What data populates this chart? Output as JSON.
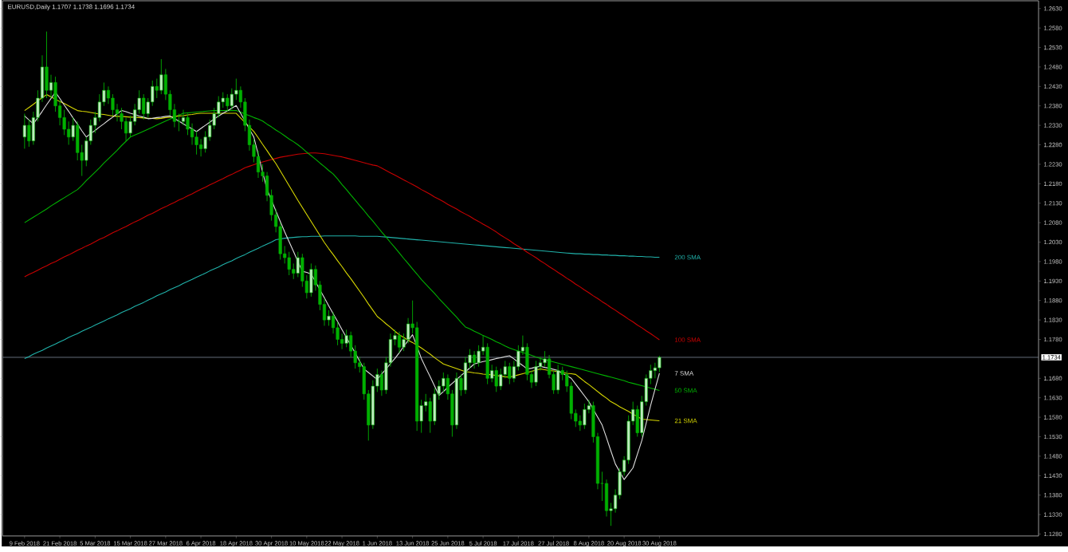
{
  "chart_data": {
    "type": "candlestick",
    "title": "EURUSD,Daily  1.1707 1.1738 1.1696 1.1734",
    "color": "#00b000",
    "categories": [
      "9 Feb 2018",
      null,
      null,
      null,
      null,
      null,
      null,
      null,
      "21 Feb 2018",
      null,
      null,
      null,
      null,
      null,
      null,
      null,
      "5 Mar 2018",
      null,
      null,
      null,
      null,
      null,
      null,
      null,
      "15 Mar 2018",
      null,
      null,
      null,
      null,
      null,
      null,
      null,
      "27 Mar 2018",
      null,
      null,
      null,
      null,
      null,
      null,
      null,
      "6 Apr 2018",
      null,
      null,
      null,
      null,
      null,
      null,
      null,
      "18 Apr 2018",
      null,
      null,
      null,
      null,
      null,
      null,
      null,
      "30 Apr 2018",
      null,
      null,
      null,
      null,
      null,
      null,
      null,
      "10 May 2018",
      null,
      null,
      null,
      null,
      null,
      null,
      null,
      "22 May 2018",
      null,
      null,
      null,
      null,
      null,
      null,
      null,
      "1 Jun 2018",
      null,
      null,
      null,
      null,
      null,
      null,
      null,
      "13 Jun 2018",
      null,
      null,
      null,
      null,
      null,
      null,
      null,
      "25 Jun 2018",
      null,
      null,
      null,
      null,
      null,
      null,
      null,
      "5 Jul 2018",
      null,
      null,
      null,
      null,
      null,
      null,
      null,
      "17 Jul 2018",
      null,
      null,
      null,
      null,
      null,
      null,
      null,
      "27 Jul 2018",
      null,
      null,
      null,
      null,
      null,
      null,
      null,
      "8 Aug 2018",
      null,
      null,
      null,
      null,
      null,
      null,
      null,
      "20 Aug 2018",
      null,
      null,
      null,
      null,
      null,
      null,
      null,
      "30 Aug 2018"
    ],
    "ohlc": [
      [
        1.23,
        1.236,
        1.227,
        1.233
      ],
      [
        1.233,
        1.2345,
        1.2275,
        1.229
      ],
      [
        1.229,
        1.2365,
        1.228,
        1.235
      ],
      [
        1.235,
        1.242,
        1.234,
        1.24
      ],
      [
        1.24,
        1.251,
        1.239,
        1.248
      ],
      [
        1.248,
        1.2571,
        1.24,
        1.242
      ],
      [
        1.242,
        1.246,
        1.24,
        1.244
      ],
      [
        1.244,
        1.2455,
        1.2365,
        1.238
      ],
      [
        1.238,
        1.2395,
        1.233,
        1.235
      ],
      [
        1.235,
        1.237,
        1.2305,
        1.232
      ],
      [
        1.232,
        1.234,
        1.228,
        1.23
      ],
      [
        1.23,
        1.235,
        1.229,
        1.233
      ],
      [
        1.233,
        1.234,
        1.224,
        1.226
      ],
      [
        1.226,
        1.228,
        1.22,
        1.224
      ],
      [
        1.224,
        1.23,
        1.2225,
        1.229
      ],
      [
        1.229,
        1.2345,
        1.228,
        1.233
      ],
      [
        1.233,
        1.2365,
        1.231,
        1.235
      ],
      [
        1.235,
        1.241,
        1.234,
        1.239
      ],
      [
        1.239,
        1.244,
        1.238,
        1.242
      ],
      [
        1.242,
        1.243,
        1.2385,
        1.24
      ],
      [
        1.24,
        1.241,
        1.2355,
        1.237
      ],
      [
        1.237,
        1.2385,
        1.234,
        1.236
      ],
      [
        1.236,
        1.2375,
        1.232,
        1.234
      ],
      [
        1.234,
        1.235,
        1.229,
        1.231
      ],
      [
        1.231,
        1.2355,
        1.23,
        1.234
      ],
      [
        1.234,
        1.2385,
        1.233,
        1.237
      ],
      [
        1.237,
        1.242,
        1.236,
        1.24
      ],
      [
        1.24,
        1.241,
        1.2345,
        1.236
      ],
      [
        1.236,
        1.24,
        1.235,
        1.239
      ],
      [
        1.239,
        1.2445,
        1.238,
        1.243
      ],
      [
        1.243,
        1.245,
        1.24,
        1.242
      ],
      [
        1.242,
        1.25,
        1.241,
        1.246
      ],
      [
        1.246,
        1.2475,
        1.2395,
        1.241
      ],
      [
        1.241,
        1.242,
        1.2355,
        1.237
      ],
      [
        1.237,
        1.2385,
        1.2325,
        1.234
      ],
      [
        1.234,
        1.236,
        1.2315,
        1.234
      ],
      [
        1.234,
        1.237,
        1.233,
        1.235
      ],
      [
        1.235,
        1.236,
        1.2305,
        1.232
      ],
      [
        1.232,
        1.2335,
        1.228,
        1.23
      ],
      [
        1.23,
        1.2315,
        1.2255,
        1.228
      ],
      [
        1.228,
        1.2295,
        1.225,
        1.227
      ],
      [
        1.227,
        1.2315,
        1.226,
        1.23
      ],
      [
        1.23,
        1.2345,
        1.229,
        1.233
      ],
      [
        1.233,
        1.2375,
        1.232,
        1.236
      ],
      [
        1.236,
        1.2405,
        1.235,
        1.239
      ],
      [
        1.239,
        1.2415,
        1.2375,
        1.24
      ],
      [
        1.24,
        1.241,
        1.2365,
        1.238
      ],
      [
        1.238,
        1.2425,
        1.237,
        1.241
      ],
      [
        1.241,
        1.245,
        1.2395,
        1.242
      ],
      [
        1.242,
        1.243,
        1.2375,
        1.239
      ],
      [
        1.239,
        1.24,
        1.2315,
        1.233
      ],
      [
        1.233,
        1.2345,
        1.2265,
        1.228
      ],
      [
        1.228,
        1.2295,
        1.2235,
        1.225
      ],
      [
        1.225,
        1.2265,
        1.2195,
        1.221
      ],
      [
        1.221,
        1.223,
        1.2185,
        1.22
      ],
      [
        1.22,
        1.221,
        1.2135,
        1.215
      ],
      [
        1.215,
        1.2165,
        1.2085,
        1.21
      ],
      [
        1.21,
        1.2115,
        1.2055,
        1.207
      ],
      [
        1.207,
        1.208,
        1.1985,
        1.2
      ],
      [
        1.2,
        1.202,
        1.1975,
        1.199
      ],
      [
        1.199,
        1.2005,
        1.1945,
        1.196
      ],
      [
        1.196,
        1.1975,
        1.1935,
        1.195
      ],
      [
        1.195,
        1.2005,
        1.194,
        1.199
      ],
      [
        1.199,
        1.2,
        1.1915,
        1.193
      ],
      [
        1.193,
        1.1945,
        1.1885,
        1.19
      ],
      [
        1.19,
        1.1975,
        1.189,
        1.196
      ],
      [
        1.196,
        1.197,
        1.1905,
        1.192
      ],
      [
        1.192,
        1.193,
        1.1855,
        1.187
      ],
      [
        1.187,
        1.1885,
        1.1815,
        1.183
      ],
      [
        1.183,
        1.1855,
        1.1815,
        1.184
      ],
      [
        1.184,
        1.185,
        1.1795,
        1.181
      ],
      [
        1.181,
        1.1825,
        1.1765,
        1.178
      ],
      [
        1.178,
        1.1795,
        1.1755,
        1.177
      ],
      [
        1.177,
        1.1805,
        1.176,
        1.179
      ],
      [
        1.179,
        1.18,
        1.1735,
        1.175
      ],
      [
        1.175,
        1.1765,
        1.1705,
        1.172
      ],
      [
        1.172,
        1.1735,
        1.1695,
        1.171
      ],
      [
        1.171,
        1.172,
        1.1625,
        1.164
      ],
      [
        1.164,
        1.165,
        1.152,
        1.156
      ],
      [
        1.156,
        1.1675,
        1.155,
        1.166
      ],
      [
        1.166,
        1.1705,
        1.1645,
        1.169
      ],
      [
        1.169,
        1.17,
        1.1635,
        1.165
      ],
      [
        1.165,
        1.1735,
        1.164,
        1.172
      ],
      [
        1.172,
        1.1795,
        1.171,
        1.178
      ],
      [
        1.178,
        1.1805,
        1.1765,
        1.179
      ],
      [
        1.179,
        1.18,
        1.1745,
        1.176
      ],
      [
        1.176,
        1.1795,
        1.175,
        1.178
      ],
      [
        1.178,
        1.1835,
        1.177,
        1.182
      ],
      [
        1.182,
        1.188,
        1.1795,
        1.181
      ],
      [
        1.181,
        1.1825,
        1.1545,
        1.157
      ],
      [
        1.157,
        1.1625,
        1.154,
        1.161
      ],
      [
        1.161,
        1.164,
        1.1595,
        1.162
      ],
      [
        1.162,
        1.163,
        1.154,
        1.157
      ],
      [
        1.157,
        1.1655,
        1.156,
        1.164
      ],
      [
        1.164,
        1.1675,
        1.1625,
        1.166
      ],
      [
        1.166,
        1.1695,
        1.1645,
        1.168
      ],
      [
        1.168,
        1.169,
        1.1625,
        1.164
      ],
      [
        1.164,
        1.165,
        1.153,
        1.156
      ],
      [
        1.156,
        1.1695,
        1.155,
        1.168
      ],
      [
        1.168,
        1.169,
        1.1635,
        1.165
      ],
      [
        1.165,
        1.1735,
        1.164,
        1.172
      ],
      [
        1.172,
        1.1755,
        1.1705,
        1.174
      ],
      [
        1.174,
        1.175,
        1.1705,
        1.172
      ],
      [
        1.172,
        1.1765,
        1.171,
        1.175
      ],
      [
        1.175,
        1.179,
        1.174,
        1.176
      ],
      [
        1.176,
        1.177,
        1.1665,
        1.168
      ],
      [
        1.168,
        1.1715,
        1.167,
        1.17
      ],
      [
        1.17,
        1.171,
        1.1645,
        1.166
      ],
      [
        1.166,
        1.1705,
        1.165,
        1.169
      ],
      [
        1.169,
        1.1725,
        1.168,
        1.171
      ],
      [
        1.171,
        1.172,
        1.1665,
        1.168
      ],
      [
        1.168,
        1.1725,
        1.167,
        1.171
      ],
      [
        1.171,
        1.1765,
        1.17,
        1.175
      ],
      [
        1.175,
        1.179,
        1.174,
        1.176
      ],
      [
        1.176,
        1.177,
        1.1675,
        1.169
      ],
      [
        1.169,
        1.17,
        1.1655,
        1.167
      ],
      [
        1.167,
        1.1725,
        1.166,
        1.171
      ],
      [
        1.171,
        1.1735,
        1.17,
        1.172
      ],
      [
        1.172,
        1.175,
        1.171,
        1.173
      ],
      [
        1.173,
        1.174,
        1.168,
        1.169
      ],
      [
        1.169,
        1.17,
        1.164,
        1.165
      ],
      [
        1.165,
        1.1715,
        1.164,
        1.17
      ],
      [
        1.17,
        1.171,
        1.1675,
        1.169
      ],
      [
        1.169,
        1.17,
        1.1645,
        1.166
      ],
      [
        1.166,
        1.167,
        1.1575,
        1.159
      ],
      [
        1.159,
        1.16,
        1.1555,
        1.157
      ],
      [
        1.157,
        1.1585,
        1.1545,
        1.156
      ],
      [
        1.156,
        1.1615,
        1.155,
        1.16
      ],
      [
        1.16,
        1.1625,
        1.159,
        1.161
      ],
      [
        1.161,
        1.162,
        1.1515,
        1.153
      ],
      [
        1.153,
        1.154,
        1.1395,
        1.141
      ],
      [
        1.141,
        1.144,
        1.1365,
        1.141
      ],
      [
        1.141,
        1.142,
        1.1325,
        1.134
      ],
      [
        1.134,
        1.136,
        1.1301,
        1.1345
      ],
      [
        1.1345,
        1.1395,
        1.1335,
        1.138
      ],
      [
        1.138,
        1.145,
        1.137,
        1.144
      ],
      [
        1.144,
        1.148,
        1.143,
        1.147
      ],
      [
        1.147,
        1.1585,
        1.146,
        1.157
      ],
      [
        1.157,
        1.162,
        1.156,
        1.16
      ],
      [
        1.16,
        1.161,
        1.153,
        1.154
      ],
      [
        1.154,
        1.1635,
        1.153,
        1.162
      ],
      [
        1.162,
        1.169,
        1.161,
        1.168
      ],
      [
        1.168,
        1.1715,
        1.1665,
        1.17
      ],
      [
        1.17,
        1.172,
        1.168,
        1.1707
      ],
      [
        1.1707,
        1.1738,
        1.1696,
        1.1734
      ]
    ],
    "series": [
      {
        "type": "line",
        "name": "200 SMA",
        "color": "#20b2aa",
        "values": [
          1.1731,
          1.1736,
          1.1742,
          1.1747,
          1.1752,
          1.1758,
          1.1763,
          1.1768,
          1.1774,
          1.1779,
          1.1785,
          1.179,
          1.1795,
          1.1801,
          1.1806,
          1.1811,
          1.1817,
          1.1822,
          1.1827,
          1.1833,
          1.1838,
          1.1843,
          1.1849,
          1.1854,
          1.1859,
          1.1865,
          1.187,
          1.1875,
          1.1881,
          1.1886,
          1.1892,
          1.1897,
          1.1902,
          1.1908,
          1.1913,
          1.1918,
          1.1924,
          1.1929,
          1.1934,
          1.194,
          1.1945,
          1.195,
          1.1956,
          1.1961,
          1.1966,
          1.1972,
          1.1977,
          1.1982,
          1.1988,
          1.1993,
          1.1998,
          1.2004,
          1.2009,
          1.2014,
          1.202,
          1.2025,
          1.203,
          1.2036,
          1.2038,
          1.204,
          1.2041,
          1.2042,
          1.2043,
          1.2044,
          1.2044,
          1.2045,
          1.2045,
          1.2045,
          1.2046,
          1.2046,
          1.2046,
          1.2046,
          1.2046,
          1.2046,
          1.2046,
          1.2046,
          1.2045,
          1.2045,
          1.2045,
          1.2045,
          1.2045,
          1.2044,
          1.2043,
          1.2042,
          1.2041,
          1.204,
          1.2039,
          1.2038,
          1.2037,
          1.2036,
          1.2035,
          1.2034,
          1.2033,
          1.2032,
          1.2031,
          1.203,
          1.2029,
          1.2028,
          1.2027,
          1.2026,
          1.2025,
          1.2024,
          1.2023,
          1.2022,
          1.2021,
          1.202,
          1.2019,
          1.2018,
          1.2017,
          1.2016,
          1.2015,
          1.2014,
          1.2013,
          1.2012,
          1.2011,
          1.201,
          1.2009,
          1.2008,
          1.2007,
          1.2006,
          1.2005,
          1.2004,
          1.2003,
          1.2002,
          1.2001,
          1.2,
          1.2,
          1.1999,
          1.1999,
          1.1998,
          1.1998,
          1.1997,
          1.1997,
          1.1996,
          1.1996,
          1.1995,
          1.1995,
          1.1994,
          1.1994,
          1.1993,
          1.1993,
          1.1992,
          1.1992,
          1.1991,
          1.1991
        ]
      },
      {
        "type": "line",
        "name": "100 SMA",
        "color": "#c80000",
        "values": [
          1.1941,
          1.1947,
          1.1952,
          1.1958,
          1.1964,
          1.1969,
          1.1975,
          1.198,
          1.1986,
          1.1992,
          1.1997,
          1.2003,
          1.2009,
          1.2014,
          1.202,
          1.2025,
          1.2031,
          1.2037,
          1.2042,
          1.2048,
          1.2054,
          1.2059,
          1.2065,
          1.207,
          1.2076,
          1.2082,
          1.2087,
          1.2093,
          1.2099,
          1.2104,
          1.211,
          1.2116,
          1.2121,
          1.2127,
          1.2132,
          1.2138,
          1.2143,
          1.2149,
          1.2154,
          1.216,
          1.2166,
          1.2171,
          1.2177,
          1.2182,
          1.2188,
          1.2193,
          1.2199,
          1.2204,
          1.221,
          1.2215,
          1.2221,
          1.2225,
          1.2229,
          1.2233,
          1.2236,
          1.2239,
          1.2242,
          1.2245,
          1.2248,
          1.225,
          1.2252,
          1.2254,
          1.2256,
          1.2257,
          1.2258,
          1.2259,
          1.2259,
          1.2258,
          1.2257,
          1.2255,
          1.2253,
          1.2251,
          1.2249,
          1.2246,
          1.2243,
          1.224,
          1.2237,
          1.2234,
          1.2231,
          1.2228,
          1.2226,
          1.222,
          1.2214,
          1.2208,
          1.2202,
          1.2196,
          1.219,
          1.2184,
          1.2178,
          1.2172,
          1.2165,
          1.2159,
          1.2153,
          1.2146,
          1.214,
          1.2134,
          1.2127,
          1.2121,
          1.2115,
          1.2108,
          1.2102,
          1.2096,
          1.2089,
          1.2083,
          1.2076,
          1.207,
          1.2063,
          1.2056,
          1.2048,
          1.2041,
          1.2034,
          1.2026,
          1.2019,
          1.2012,
          1.2004,
          1.1997,
          1.199,
          1.1982,
          1.1975,
          1.1967,
          1.196,
          1.1952,
          1.1945,
          1.1937,
          1.193,
          1.1922,
          1.1915,
          1.1907,
          1.19,
          1.1892,
          1.1885,
          1.1877,
          1.187,
          1.1862,
          1.1855,
          1.1847,
          1.184,
          1.1832,
          1.1825,
          1.1817,
          1.181,
          1.1802,
          1.1795,
          1.1787,
          1.1779
        ]
      },
      {
        "type": "line",
        "name": "50 SMA",
        "color": "#00b400",
        "values": [
          1.208,
          1.2087,
          1.2094,
          1.2101,
          1.2108,
          1.2115,
          1.2123,
          1.213,
          1.2137,
          1.2144,
          1.2151,
          1.2158,
          1.2165,
          1.2176,
          1.2188,
          1.2199,
          1.221,
          1.2221,
          1.2233,
          1.2244,
          1.2255,
          1.2266,
          1.2278,
          1.2289,
          1.23,
          1.2305,
          1.231,
          1.2315,
          1.232,
          1.2325,
          1.2331,
          1.2336,
          1.2341,
          1.2346,
          1.2351,
          1.2356,
          1.2361,
          1.2362,
          1.2363,
          1.2364,
          1.2365,
          1.2366,
          1.2367,
          1.2368,
          1.2368,
          1.2368,
          1.2368,
          1.2368,
          1.2368,
          1.2364,
          1.2359,
          1.2355,
          1.235,
          1.2346,
          1.2341,
          1.2333,
          1.2326,
          1.2318,
          1.2311,
          1.2303,
          1.2295,
          1.2288,
          1.228,
          1.2271,
          1.2261,
          1.2252,
          1.2243,
          1.2233,
          1.2224,
          1.2214,
          1.2205,
          1.2192,
          1.2178,
          1.2165,
          1.2151,
          1.2138,
          1.2124,
          1.2111,
          1.2097,
          1.2084,
          1.207,
          1.2056,
          1.2043,
          1.2029,
          1.2016,
          1.2002,
          1.1988,
          1.1975,
          1.1961,
          1.1948,
          1.1934,
          1.1922,
          1.191,
          1.1898,
          1.1885,
          1.1873,
          1.1861,
          1.1849,
          1.1837,
          1.1824,
          1.1812,
          1.1807,
          1.1801,
          1.1796,
          1.179,
          1.1785,
          1.178,
          1.1774,
          1.1769,
          1.1763,
          1.1758,
          1.1754,
          1.175,
          1.1746,
          1.1743,
          1.1739,
          1.1735,
          1.1731,
          1.1728,
          1.1725,
          1.1722,
          1.1719,
          1.1716,
          1.1713,
          1.171,
          1.1707,
          1.1704,
          1.1701,
          1.1698,
          1.1695,
          1.1692,
          1.1689,
          1.1686,
          1.1683,
          1.168,
          1.1677,
          1.1674,
          1.167,
          1.1667,
          1.1664,
          1.1661,
          1.1658,
          1.1655,
          1.1652,
          1.1649
        ]
      },
      {
        "type": "line",
        "name": "21 SMA",
        "color": "#d8d800",
        "values": [
          1.2368,
          1.2376,
          1.2384,
          1.2393,
          1.2401,
          1.2409,
          1.2403,
          1.2397,
          1.2391,
          1.2386,
          1.238,
          1.2374,
          1.2368,
          1.2366,
          1.2365,
          1.2363,
          1.2361,
          1.2359,
          1.2358,
          1.2356,
          1.2354,
          1.2353,
          1.2353,
          1.2352,
          1.2351,
          1.2351,
          1.235,
          1.2349,
          1.2348,
          1.2348,
          1.2347,
          1.2348,
          1.235,
          1.2351,
          1.2353,
          1.2354,
          1.2355,
          1.2357,
          1.2358,
          1.236,
          1.2361,
          1.2361,
          1.2361,
          1.2361,
          1.2361,
          1.2361,
          1.2361,
          1.2361,
          1.2361,
          1.2349,
          1.2337,
          1.2326,
          1.2314,
          1.2298,
          1.2281,
          1.2265,
          1.2248,
          1.2232,
          1.2213,
          1.2194,
          1.2175,
          1.2156,
          1.2137,
          1.2119,
          1.2101,
          1.2083,
          1.2065,
          1.2047,
          1.2029,
          1.2013,
          1.1998,
          1.1982,
          1.1967,
          1.1951,
          1.1936,
          1.192,
          1.1904,
          1.1888,
          1.1871,
          1.1855,
          1.1839,
          1.183,
          1.182,
          1.1811,
          1.1801,
          1.1792,
          1.1785,
          1.1778,
          1.1772,
          1.1765,
          1.1758,
          1.175,
          1.1742,
          1.1733,
          1.1725,
          1.1717,
          1.1713,
          1.1709,
          1.1705,
          1.1701,
          1.1697,
          1.1696,
          1.1694,
          1.1693,
          1.1691,
          1.169,
          1.1689,
          1.1687,
          1.1686,
          1.1684,
          1.1683,
          1.1686,
          1.1689,
          1.1692,
          1.1695,
          1.1698,
          1.1701,
          1.1704,
          1.1702,
          1.17,
          1.1699,
          1.1697,
          1.1695,
          1.1693,
          1.1692,
          1.169,
          1.1681,
          1.1672,
          1.1664,
          1.1655,
          1.1646,
          1.1637,
          1.1629,
          1.162,
          1.1614,
          1.1607,
          1.1601,
          1.1595,
          1.1588,
          1.1582,
          1.1575,
          1.1574,
          1.1573,
          1.1572,
          1.1571
        ]
      },
      {
        "type": "line",
        "name": "7 SMA",
        "color": "#e0e0e0",
        "values": [
          1.2354,
          1.2344,
          1.2334,
          1.235,
          1.2366,
          1.2383,
          1.2399,
          1.2415,
          1.2399,
          1.2382,
          1.2366,
          1.2349,
          1.2333,
          1.2316,
          1.23,
          1.2309,
          1.2317,
          1.2326,
          1.2334,
          1.2343,
          1.2351,
          1.236,
          1.2368,
          1.2365,
          1.2361,
          1.2358,
          1.2354,
          1.2351,
          1.2347,
          1.2348,
          1.235,
          1.2351,
          1.2353,
          1.2354,
          1.2347,
          1.2341,
          1.2334,
          1.2327,
          1.2321,
          1.2314,
          1.2322,
          1.233,
          1.2338,
          1.2346,
          1.2354,
          1.2361,
          1.2367,
          1.2374,
          1.2381,
          1.2361,
          1.2341,
          1.232,
          1.23,
          1.2255,
          1.221,
          1.2165,
          1.2138,
          1.211,
          1.2083,
          1.2056,
          1.2031,
          1.2006,
          1.198,
          1.1955,
          1.1952,
          1.1948,
          1.1928,
          1.1907,
          1.1887,
          1.1866,
          1.1846,
          1.1826,
          1.1805,
          1.1785,
          1.1765,
          1.1745,
          1.1724,
          1.1704,
          1.1695,
          1.1686,
          1.1677,
          1.1691,
          1.1704,
          1.1718,
          1.1731,
          1.1746,
          1.1762,
          1.1777,
          1.1792,
          1.1762,
          1.1731,
          1.1707,
          1.1684,
          1.166,
          1.1636,
          1.1646,
          1.1657,
          1.1667,
          1.1677,
          1.1687,
          1.1697,
          1.1707,
          1.1717,
          1.172,
          1.1723,
          1.1725,
          1.1728,
          1.1731,
          1.1733,
          1.1736,
          1.1738,
          1.173,
          1.1721,
          1.1713,
          1.1704,
          1.1706,
          1.1709,
          1.1711,
          1.1708,
          1.1706,
          1.1703,
          1.17,
          1.1693,
          1.1687,
          1.168,
          1.1665,
          1.165,
          1.1635,
          1.162,
          1.16,
          1.158,
          1.156,
          1.1527,
          1.1493,
          1.146,
          1.144,
          1.142,
          1.1435,
          1.145,
          1.1485,
          1.152,
          1.1565,
          1.161,
          1.1652,
          1.1693
        ]
      }
    ],
    "ylim": [
      1.1275,
      1.265
    ],
    "yticks": [
      {
        "value": 1.263,
        "label": "1.2630"
      },
      {
        "value": 1.258,
        "label": "1.2580"
      },
      {
        "value": 1.253,
        "label": "1.2530"
      },
      {
        "value": 1.248,
        "label": "1.2480"
      },
      {
        "value": 1.243,
        "label": "1.2430"
      },
      {
        "value": 1.238,
        "label": "1.2380"
      },
      {
        "value": 1.233,
        "label": "1.2330"
      },
      {
        "value": 1.228,
        "label": "1.2280"
      },
      {
        "value": 1.223,
        "label": "1.2230"
      },
      {
        "value": 1.218,
        "label": "1.2180"
      },
      {
        "value": 1.213,
        "label": "1.2130"
      },
      {
        "value": 1.208,
        "label": "1.2080"
      },
      {
        "value": 1.203,
        "label": "1.2030"
      },
      {
        "value": 1.198,
        "label": "1.1980"
      },
      {
        "value": 1.193,
        "label": "1.1930"
      },
      {
        "value": 1.188,
        "label": "1.1880"
      },
      {
        "value": 1.183,
        "label": "1.1830"
      },
      {
        "value": 1.178,
        "label": "1.1780"
      },
      {
        "value": 1.168,
        "label": "1.1680"
      },
      {
        "value": 1.163,
        "label": "1.1630"
      },
      {
        "value": 1.158,
        "label": "1.1580"
      },
      {
        "value": 1.153,
        "label": "1.1530"
      },
      {
        "value": 1.148,
        "label": "1.1480"
      },
      {
        "value": 1.143,
        "label": "1.1430"
      },
      {
        "value": 1.138,
        "label": "1.1380"
      },
      {
        "value": 1.133,
        "label": "1.1330"
      },
      {
        "value": 1.128,
        "label": "1.1280"
      }
    ],
    "ref_lines": [
      {
        "axis": "y",
        "value": 1.1734,
        "label": "1.1734",
        "color": "#7f8a99"
      }
    ]
  }
}
